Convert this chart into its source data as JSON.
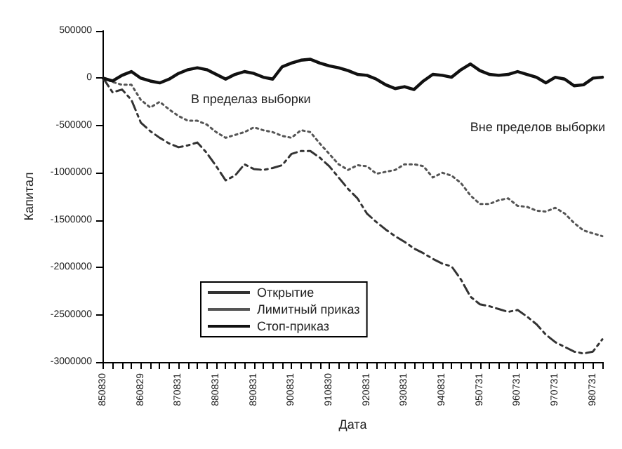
{
  "chart_data": {
    "type": "line",
    "xlabel": "Дата",
    "ylabel": "Капитал",
    "categories": [
      "850830",
      null,
      null,
      null,
      "860829",
      null,
      null,
      null,
      "870831",
      null,
      null,
      null,
      "880831",
      null,
      null,
      null,
      "890831",
      null,
      null,
      null,
      "900831",
      null,
      null,
      null,
      "910830",
      null,
      null,
      null,
      "920831",
      null,
      null,
      null,
      "930831",
      null,
      null,
      null,
      "940831",
      null,
      null,
      null,
      "950731",
      null,
      null,
      null,
      "960731",
      null,
      null,
      null,
      "970731",
      null,
      null,
      null,
      "980731",
      null
    ],
    "series": [
      {
        "name": "Открытие",
        "color": "#333333",
        "line_style": "dashed",
        "values": [
          0,
          -150000,
          -120000,
          -230000,
          -470000,
          -560000,
          -630000,
          -690000,
          -730000,
          -710000,
          -680000,
          -790000,
          -930000,
          -1080000,
          -1030000,
          -910000,
          -960000,
          -970000,
          -950000,
          -920000,
          -800000,
          -770000,
          -770000,
          -840000,
          -930000,
          -1050000,
          -1170000,
          -1270000,
          -1430000,
          -1520000,
          -1600000,
          -1670000,
          -1730000,
          -1800000,
          -1850000,
          -1910000,
          -1960000,
          -1990000,
          -2130000,
          -2310000,
          -2390000,
          -2410000,
          -2440000,
          -2470000,
          -2450000,
          -2520000,
          -2600000,
          -2710000,
          -2790000,
          -2840000,
          -2890000,
          -2910000,
          -2890000,
          -2760000
        ]
      },
      {
        "name": "Лимитный приказ",
        "color": "#555555",
        "line_style": "dotted",
        "values": [
          0,
          -40000,
          -70000,
          -70000,
          -230000,
          -310000,
          -250000,
          -330000,
          -400000,
          -450000,
          -450000,
          -490000,
          -570000,
          -630000,
          -600000,
          -570000,
          -520000,
          -550000,
          -570000,
          -610000,
          -630000,
          -550000,
          -570000,
          -690000,
          -800000,
          -910000,
          -970000,
          -920000,
          -930000,
          -1010000,
          -990000,
          -970000,
          -910000,
          -910000,
          -930000,
          -1050000,
          -1000000,
          -1030000,
          -1110000,
          -1240000,
          -1330000,
          -1330000,
          -1290000,
          -1270000,
          -1350000,
          -1360000,
          -1400000,
          -1410000,
          -1370000,
          -1430000,
          -1530000,
          -1610000,
          -1640000,
          -1670000
        ]
      },
      {
        "name": "Стоп-приказ",
        "color": "#111111",
        "line_style": "solid",
        "values": [
          0,
          -30000,
          30000,
          70000,
          0,
          -30000,
          -50000,
          -10000,
          50000,
          90000,
          110000,
          90000,
          40000,
          -10000,
          40000,
          70000,
          50000,
          10000,
          -10000,
          120000,
          160000,
          190000,
          200000,
          160000,
          130000,
          110000,
          80000,
          40000,
          30000,
          -10000,
          -70000,
          -110000,
          -90000,
          -120000,
          -30000,
          40000,
          30000,
          10000,
          90000,
          150000,
          80000,
          40000,
          30000,
          40000,
          70000,
          40000,
          10000,
          -50000,
          10000,
          -10000,
          -80000,
          -70000,
          0,
          10000
        ]
      }
    ],
    "annotations": [
      "В пределаз выборки",
      "Вне пределов выборки"
    ],
    "ylim": [
      -3000000,
      500000
    ],
    "yticks": [
      -3000000,
      -2500000,
      -2000000,
      -1500000,
      -1000000,
      -500000,
      0,
      500000
    ],
    "grid": false,
    "legend": "bottom left",
    "marker": "none"
  }
}
